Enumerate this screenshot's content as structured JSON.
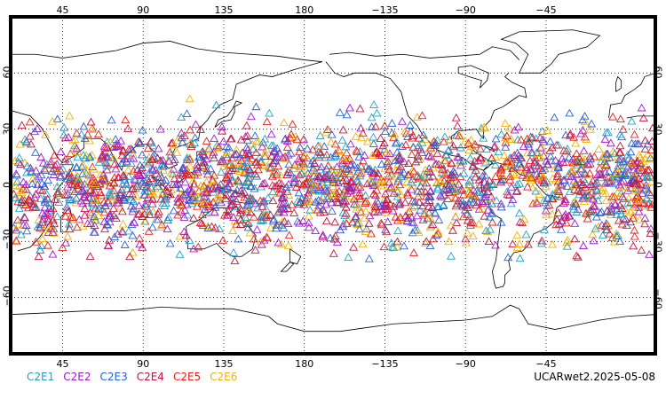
{
  "map": {
    "projection": "cylindrical-equidistant",
    "center_lon": 180,
    "lon_range": [
      16,
      376
    ],
    "lat_range": [
      -90,
      90
    ],
    "grid": true,
    "lon_ticks": [
      45,
      90,
      135,
      180,
      225,
      270,
      315
    ],
    "lon_tick_labels": [
      "45",
      "90",
      "135",
      "180",
      "−135",
      "−90",
      "−45"
    ],
    "lat_ticks": [
      60,
      30,
      0,
      -30,
      -60
    ],
    "lat_tick_labels": [
      "60",
      "30",
      "0",
      "−30",
      "−60"
    ]
  },
  "legend": [
    {
      "label": "C2E1",
      "color": "#1fa3c9"
    },
    {
      "label": "C2E2",
      "color": "#a11ad1"
    },
    {
      "label": "C2E3",
      "color": "#2462d6"
    },
    {
      "label": "C2E4",
      "color": "#c7143c"
    },
    {
      "label": "C2E5",
      "color": "#e8201a"
    },
    {
      "label": "C2E6",
      "color": "#f2b300"
    }
  ],
  "stamp": "UCARwet2.2025-05-08",
  "observations": {
    "marker": "triangle-outline",
    "lat_band": [
      -45,
      48
    ],
    "approx_count": 2600
  }
}
